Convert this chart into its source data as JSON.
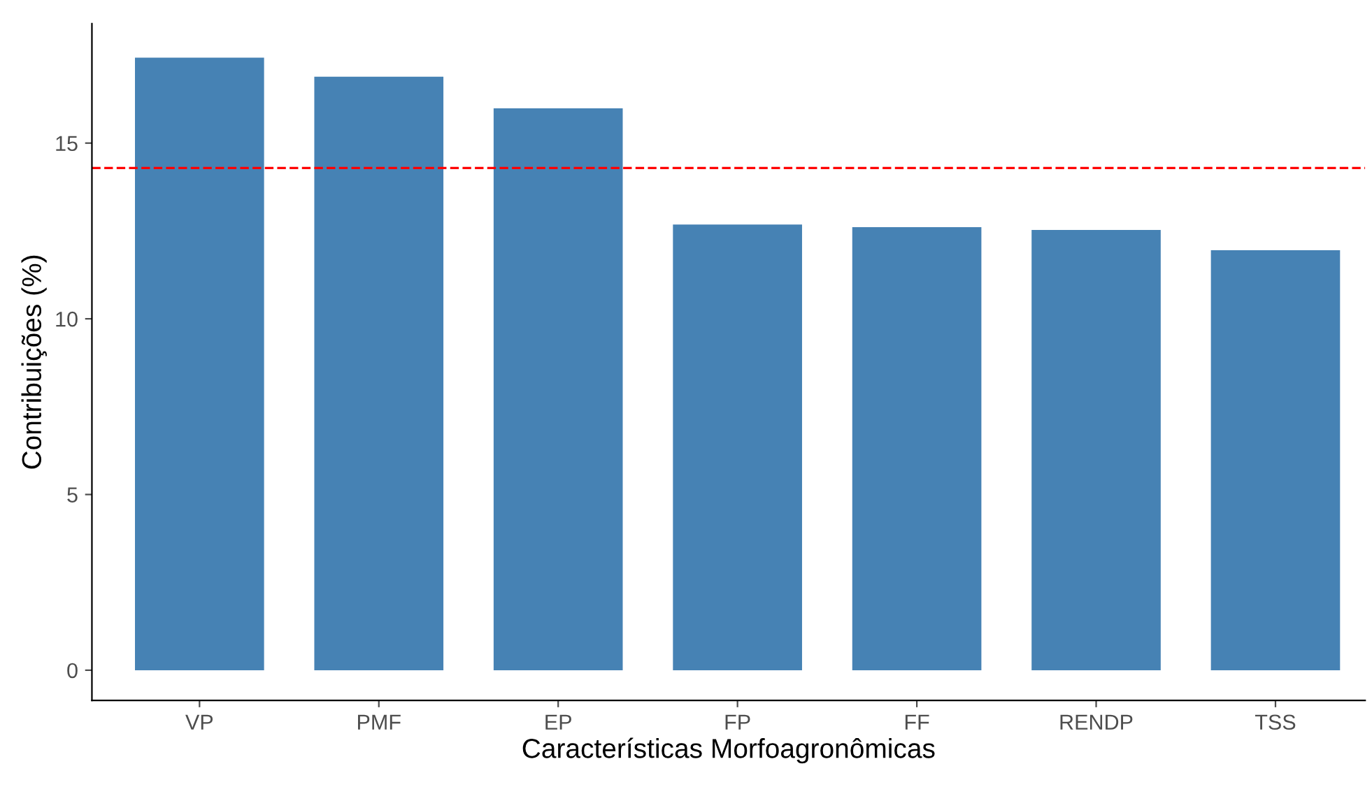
{
  "chart_data": {
    "type": "bar",
    "xlabel": "Características Morfoagronômicas",
    "ylabel": "Contribuições (%)",
    "categories": [
      "VP",
      "PMF",
      "EP",
      "FP",
      "FF",
      "RENDP",
      "TSS"
    ],
    "values": [
      17.43,
      16.89,
      15.99,
      12.68,
      12.61,
      12.53,
      11.95
    ],
    "color": "#4682b4",
    "ylim": [
      -0.86,
      18.4
    ],
    "yticks": [
      0,
      5,
      10,
      15
    ],
    "ref_lines": [
      {
        "axis": "y",
        "value": 14.29,
        "color": "#ff0000",
        "line_style": "dashed"
      }
    ],
    "grid": false,
    "legend": false
  }
}
